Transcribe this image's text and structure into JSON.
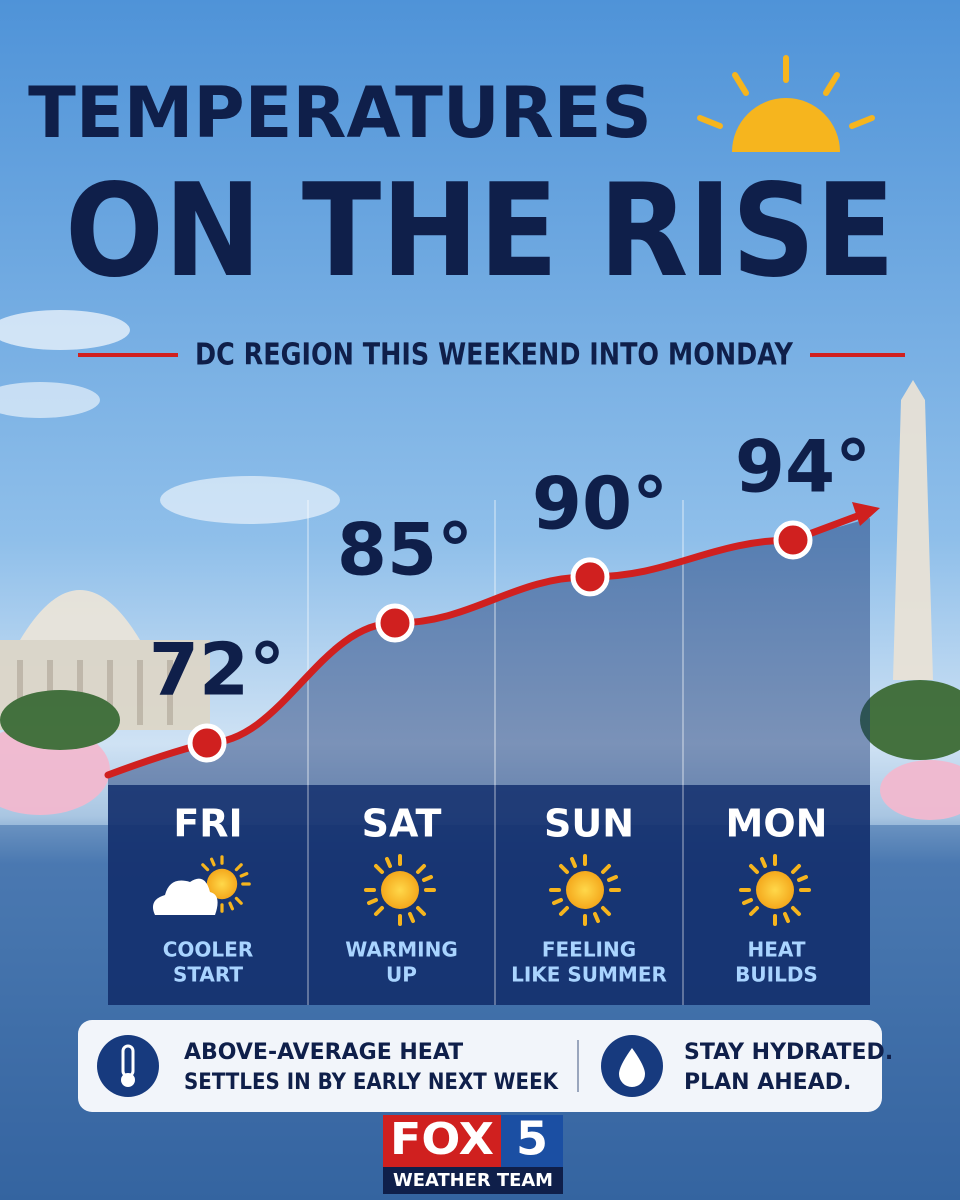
{
  "header": {
    "title_line1": "TEMPERATURES",
    "title_line2": "ON THE RISE",
    "subtitle": "DC REGION THIS WEEKEND INTO MONDAY"
  },
  "chart_data": {
    "type": "line",
    "categories": [
      "FRI",
      "SAT",
      "SUN",
      "MON"
    ],
    "values": [
      72,
      85,
      90,
      94
    ],
    "value_labels": [
      "72°",
      "85°",
      "90°",
      "94°"
    ],
    "notes": [
      [
        "COOLER",
        "START"
      ],
      [
        "WARMING",
        "UP"
      ],
      [
        "FEELING",
        "LIKE SUMMER"
      ],
      [
        "HEAT",
        "BUILDS"
      ]
    ],
    "color": "#d0201f"
  },
  "info": {
    "left": [
      "ABOVE-AVERAGE HEAT",
      "SETTLES IN BY EARLY NEXT WEEK"
    ],
    "right": [
      "STAY HYDRATED.",
      "PLAN AHEAD."
    ]
  },
  "logo": {
    "brand": "FOX",
    "channel": "5",
    "team": "WEATHER TEAM"
  }
}
